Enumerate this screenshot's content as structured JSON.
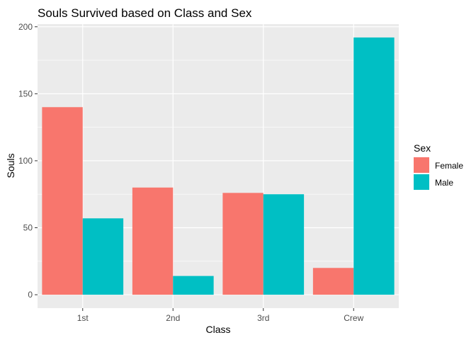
{
  "chart_data": {
    "type": "bar",
    "title": "Souls Survived based on Class and Sex",
    "xlabel": "Class",
    "ylabel": "Souls",
    "categories": [
      "1st",
      "2nd",
      "3rd",
      "Crew"
    ],
    "series": [
      {
        "name": "Female",
        "values": [
          140,
          80,
          76,
          20
        ],
        "color": "#F8766D"
      },
      {
        "name": "Male",
        "values": [
          57,
          14,
          75,
          192
        ],
        "color": "#00BFC4"
      }
    ],
    "ylim": [
      -10,
      202
    ],
    "yticks": [
      0,
      50,
      100,
      150,
      200
    ],
    "ytick_labels": [
      "0",
      "50",
      "100",
      "150",
      "200"
    ],
    "grid": true,
    "panel_background": "#EBEBEB",
    "legend": {
      "title": "Sex",
      "position": "right",
      "items": [
        "Female",
        "Male"
      ]
    }
  }
}
